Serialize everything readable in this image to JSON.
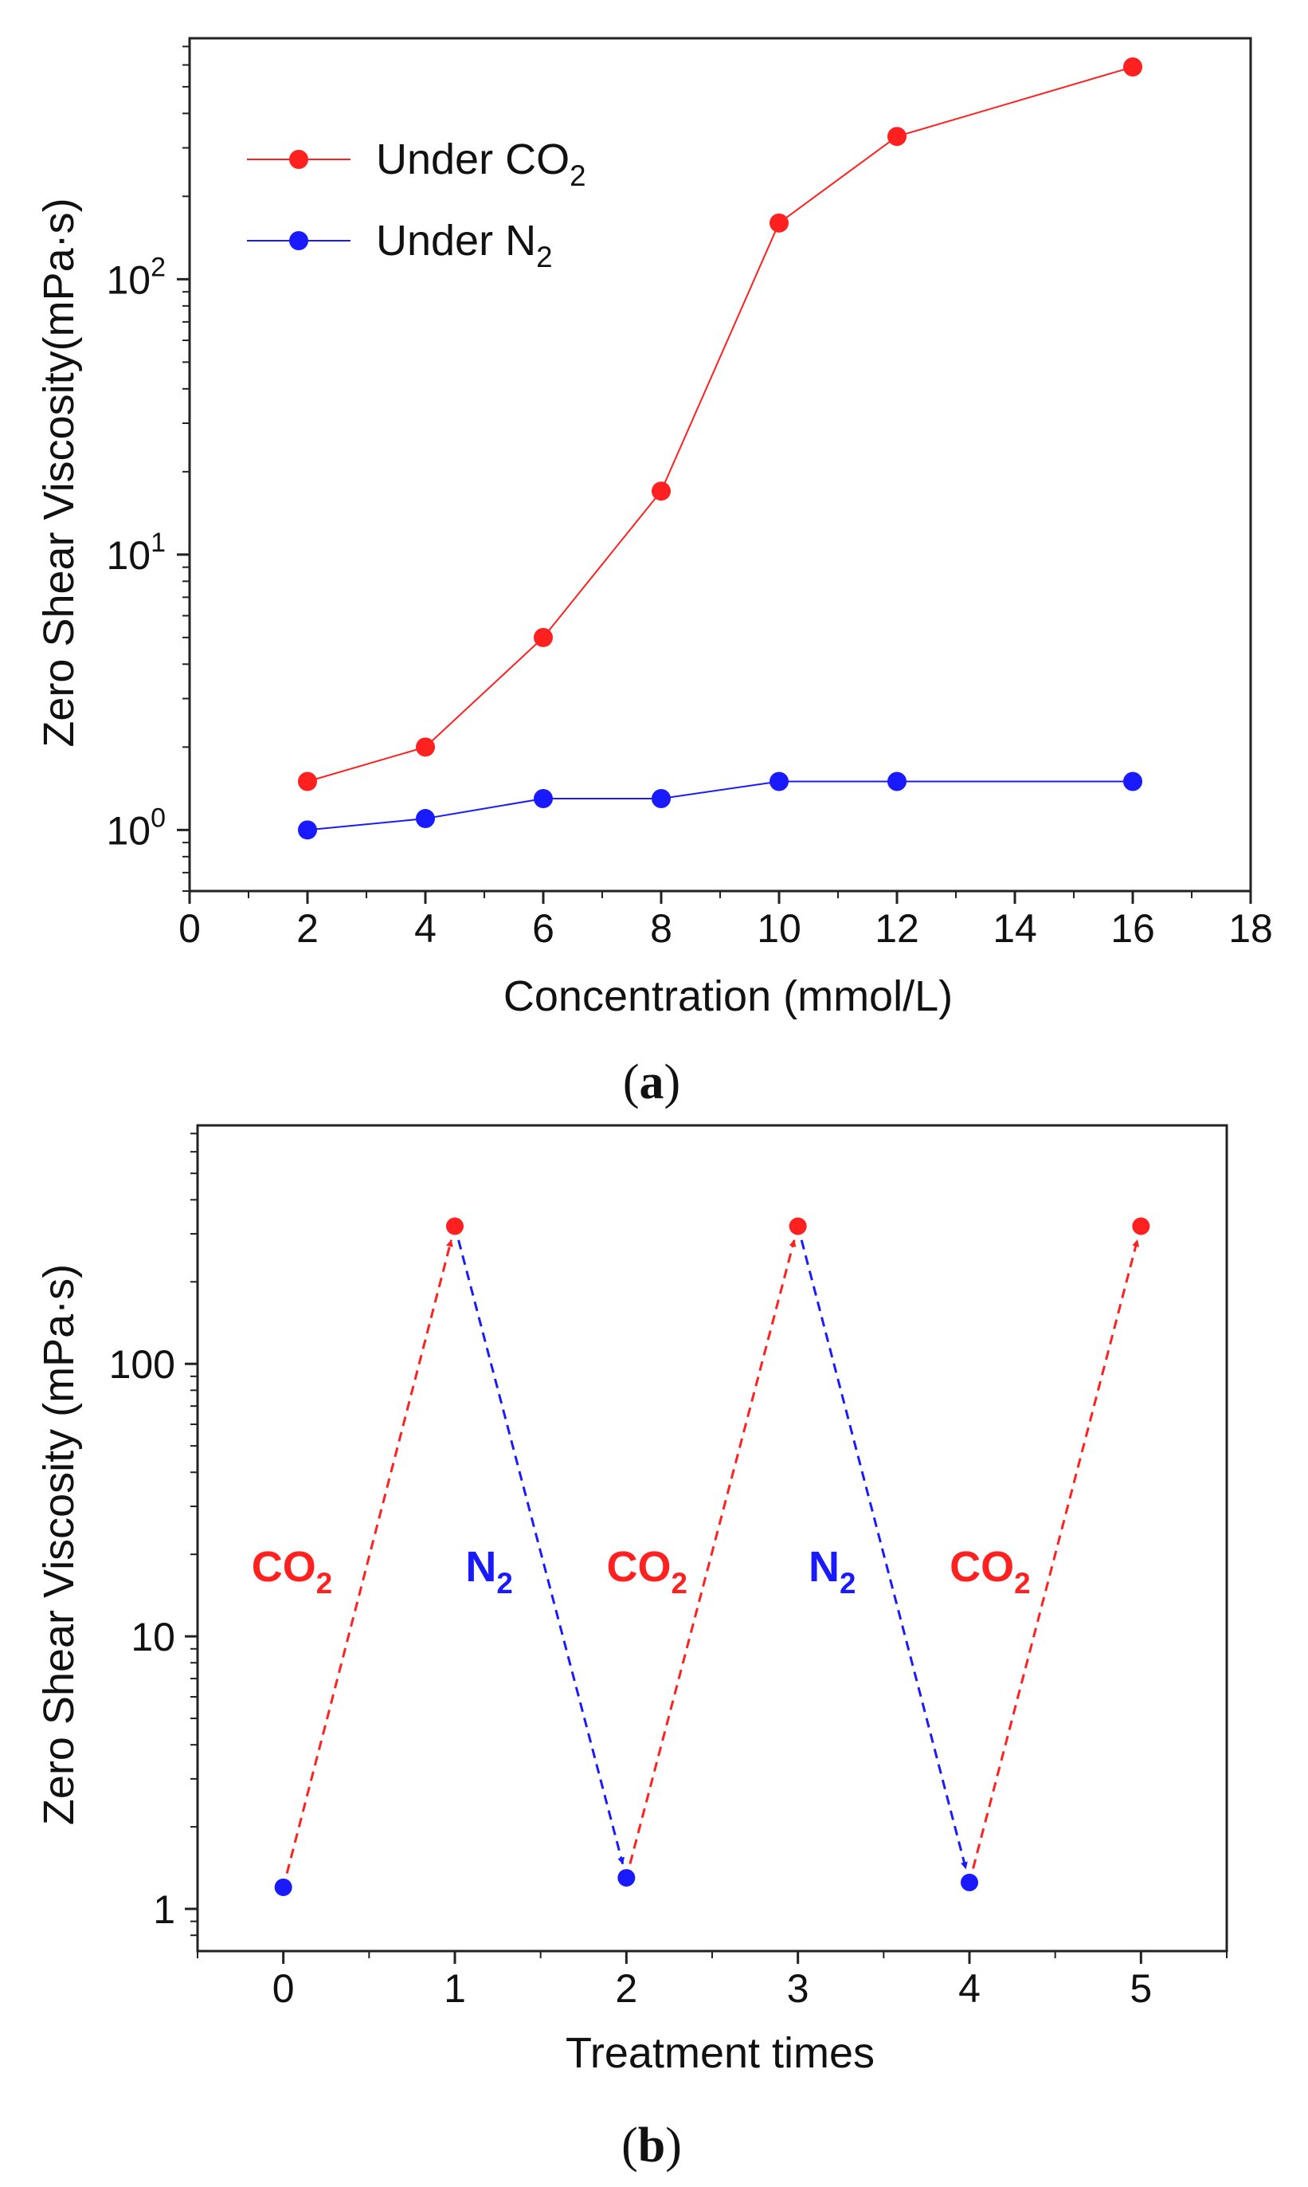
{
  "chart_data": [
    {
      "panel": "a",
      "type": "line",
      "xlabel": "Concentration (mmol/L)",
      "ylabel": "Zero Shear Viscosity(mPa·s)",
      "xlim": [
        0,
        18
      ],
      "ylim": [
        0.6,
        750
      ],
      "yscale": "log",
      "xticks": [
        0,
        2,
        4,
        6,
        8,
        10,
        12,
        14,
        16,
        18
      ],
      "yticks": [
        {
          "value": 1,
          "base": "10",
          "exp": "0"
        },
        {
          "value": 10,
          "base": "10",
          "exp": "1"
        },
        {
          "value": 100,
          "base": "10",
          "exp": "2"
        }
      ],
      "x": [
        2,
        4,
        6,
        8,
        10,
        12,
        16
      ],
      "series": [
        {
          "name_main": "Under CO",
          "name_sub": "2",
          "color": "#ff2020",
          "values": [
            1.5,
            2.0,
            5.0,
            17,
            160,
            330,
            590
          ]
        },
        {
          "name_main": "Under N",
          "name_sub": "2",
          "color": "#1a1aff",
          "values": [
            1.0,
            1.1,
            1.3,
            1.3,
            1.5,
            1.5,
            1.5
          ]
        }
      ],
      "legend": "top-left",
      "caption": "a"
    },
    {
      "panel": "b",
      "type": "line",
      "xlabel": "Treatment times",
      "ylabel": "Zero Shear Viscosity (mPa·s)",
      "xlim": [
        -0.5,
        5.5
      ],
      "ylim": [
        0.7,
        750
      ],
      "yscale": "log",
      "xticks": [
        0,
        1,
        2,
        3,
        4,
        5
      ],
      "yticks": [
        {
          "value": 1,
          "label": "1"
        },
        {
          "value": 10,
          "label": "10"
        },
        {
          "value": 100,
          "label": "100"
        }
      ],
      "points": [
        {
          "x": 0,
          "y": 1.2,
          "color": "#1a1aff"
        },
        {
          "x": 1,
          "y": 320,
          "color": "#ff2020"
        },
        {
          "x": 2,
          "y": 1.3,
          "color": "#1a1aff"
        },
        {
          "x": 3,
          "y": 320,
          "color": "#ff2020"
        },
        {
          "x": 4,
          "y": 1.25,
          "color": "#1a1aff"
        },
        {
          "x": 5,
          "y": 320,
          "color": "#ff2020"
        }
      ],
      "arrows": [
        {
          "from": 0,
          "to": 1,
          "gas": "CO2",
          "color": "#ff2020"
        },
        {
          "from": 1,
          "to": 2,
          "gas": "N2",
          "color": "#1a1aff"
        },
        {
          "from": 2,
          "to": 3,
          "gas": "CO2",
          "color": "#ff2020"
        },
        {
          "from": 3,
          "to": 4,
          "gas": "N2",
          "color": "#1a1aff"
        },
        {
          "from": 4,
          "to": 5,
          "gas": "CO2",
          "color": "#ff2020"
        }
      ],
      "annotations": [
        {
          "main": "CO",
          "sub": "2",
          "color": "#ff2020",
          "x": 0.05,
          "y": 18
        },
        {
          "main": "N",
          "sub": "2",
          "color": "#1a1aff",
          "x": 1.2,
          "y": 18
        },
        {
          "main": "CO",
          "sub": "2",
          "color": "#ff2020",
          "x": 2.12,
          "y": 18
        },
        {
          "main": "N",
          "sub": "2",
          "color": "#1a1aff",
          "x": 3.2,
          "y": 18
        },
        {
          "main": "CO",
          "sub": "2",
          "color": "#ff2020",
          "x": 4.12,
          "y": 18
        }
      ],
      "caption": "b"
    }
  ]
}
